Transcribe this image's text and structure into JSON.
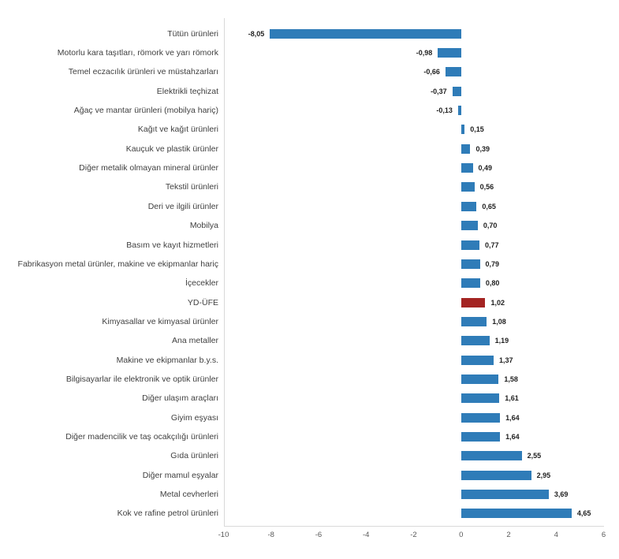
{
  "chart_data": {
    "type": "bar",
    "orientation": "horizontal",
    "title": "",
    "categories": [
      "Tütün ürünleri",
      "Motorlu kara taşıtları, römork ve yarı römork",
      "Temel eczacılık ürünleri ve müstahzarları",
      "Elektrikli teçhizat",
      "Ağaç ve mantar ürünleri (mobilya hariç)",
      "Kağıt ve kağıt ürünleri",
      "Kauçuk ve plastik ürünler",
      "Diğer metalik olmayan mineral ürünler",
      "Tekstil ürünleri",
      "Deri ve ilgili ürünler",
      "Mobilya",
      "Basım ve kayıt hizmetleri",
      "Fabrikasyon metal ürünler, makine ve ekipmanlar hariç",
      "İçecekler",
      "YD-ÜFE",
      "Kimyasallar ve kimyasal ürünler",
      "Ana metaller",
      "Makine ve ekipmanlar b.y.s.",
      "Bilgisayarlar ile elektronik ve optik ürünler",
      "Diğer ulaşım araçları",
      "Giyim eşyası",
      "Diğer madencilik ve taş ocakçılığı ürünleri",
      "Gıda ürünleri",
      "Diğer mamul eşyalar",
      "Metal cevherleri",
      "Kok ve rafine petrol ürünleri"
    ],
    "values": [
      -8.05,
      -0.98,
      -0.66,
      -0.37,
      -0.13,
      0.15,
      0.39,
      0.49,
      0.56,
      0.65,
      0.7,
      0.77,
      0.79,
      0.8,
      1.02,
      1.08,
      1.19,
      1.37,
      1.58,
      1.61,
      1.64,
      1.64,
      2.55,
      2.95,
      3.69,
      4.65
    ],
    "values_display": [
      "-8,05",
      "-0,98",
      "-0,66",
      "-0,37",
      "-0,13",
      "0,15",
      "0,39",
      "0,49",
      "0,56",
      "0,65",
      "0,70",
      "0,77",
      "0,79",
      "0,80",
      "1,02",
      "1,08",
      "1,19",
      "1,37",
      "1,58",
      "1,61",
      "1,64",
      "1,64",
      "2,55",
      "2,95",
      "3,69",
      "4,65"
    ],
    "highlight": {
      "category": "YD-ÜFE",
      "index": 14,
      "color": "#a42422"
    },
    "bar_color": "#2f7cb8",
    "xlim": [
      -10,
      6
    ],
    "x_ticks": [
      -10,
      -8,
      -6,
      -4,
      -2,
      0,
      2,
      4,
      6
    ],
    "x_tick_labels": [
      "-10",
      "-8",
      "-6",
      "-4",
      "-2",
      "0",
      "2",
      "4",
      "6"
    ],
    "xlabel": "",
    "ylabel": "",
    "legend": "none",
    "grid": false,
    "axis_color": "#d9d9d9",
    "decimal_separator": ","
  }
}
